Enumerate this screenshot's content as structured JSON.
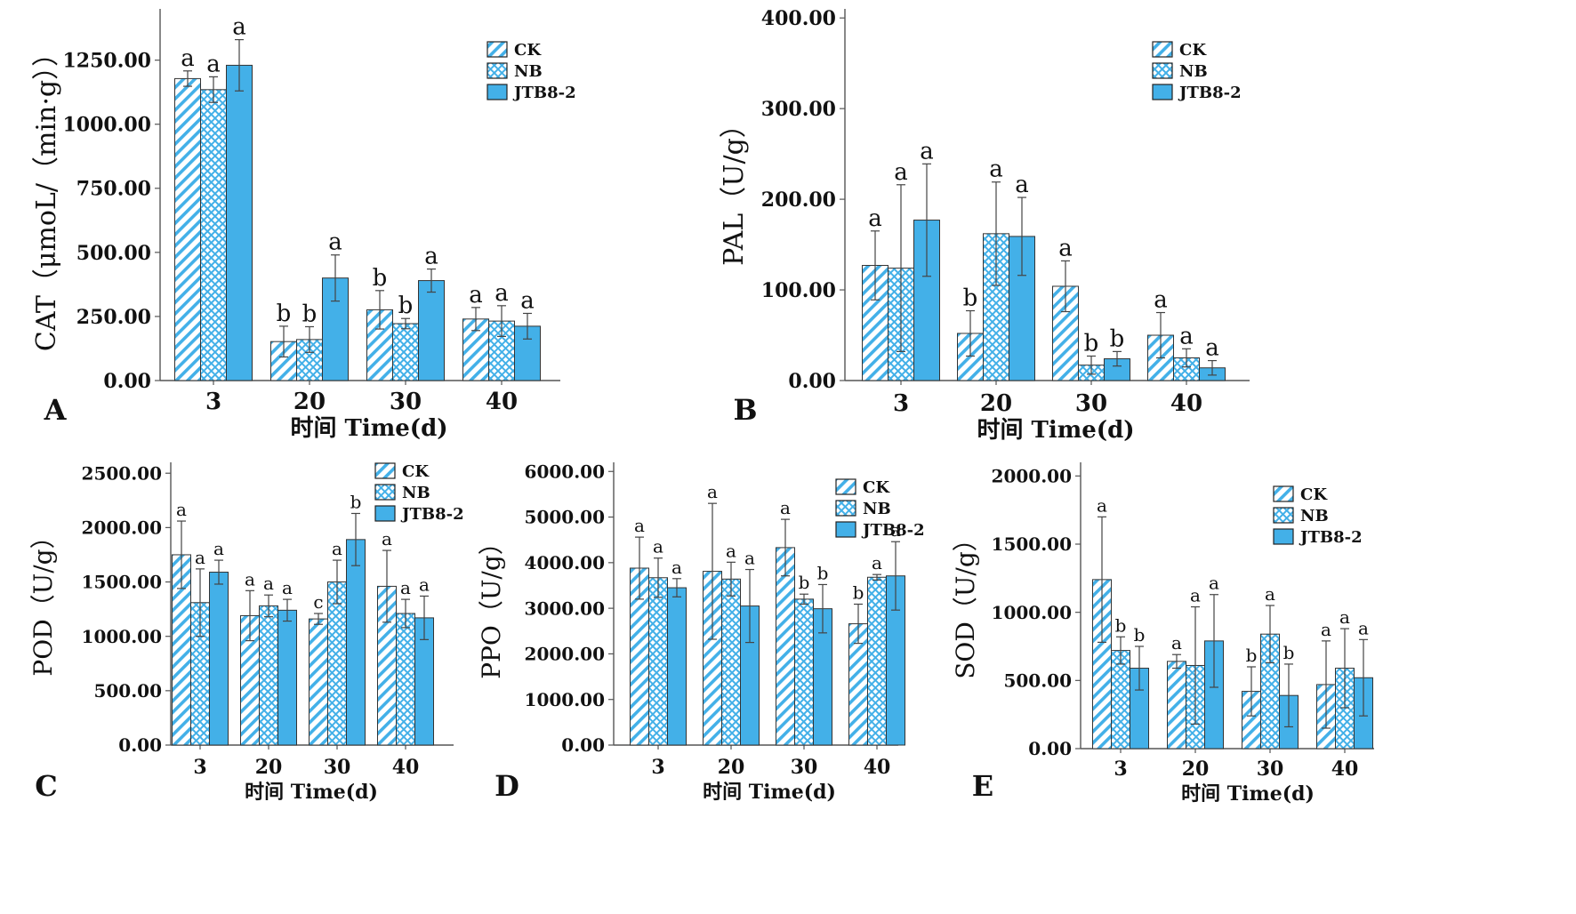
{
  "colors": {
    "CK": "#43b0e8",
    "NB": "#43b0e8",
    "JTB8-2": "#43b0e8",
    "axis": "#555555",
    "text": "#111111"
  },
  "legend_labels": [
    "CK",
    "NB",
    "JTB8-2"
  ],
  "chart_data": [
    {
      "panel": "A",
      "type": "bar",
      "title": "",
      "xlabel": "时间 Time(d)",
      "ylabel": "CAT（μmoL/（min·g））",
      "categories": [
        "3",
        "20",
        "30",
        "40"
      ],
      "ylim": [
        0,
        1450
      ],
      "yticks": [
        "0.00",
        "250.00",
        "500.00",
        "750.00",
        "1000.00",
        "1250.00"
      ],
      "tick_values": [
        0,
        250,
        500,
        750,
        1000,
        1250
      ],
      "legend": "top-right",
      "series": [
        {
          "name": "CK",
          "values": [
            1178,
            152,
            276,
            240
          ],
          "errors": [
            30,
            60,
            75,
            45
          ],
          "letters": [
            "a",
            "b",
            "b",
            "a"
          ]
        },
        {
          "name": "NB",
          "values": [
            1135,
            160,
            222,
            232
          ],
          "errors": [
            50,
            50,
            20,
            60
          ],
          "letters": [
            "a",
            "b",
            "b",
            "a"
          ]
        },
        {
          "name": "JTB8-2",
          "values": [
            1230,
            400,
            390,
            212
          ],
          "errors": [
            100,
            90,
            45,
            50
          ],
          "letters": [
            "a",
            "a",
            "a",
            "a"
          ]
        }
      ]
    },
    {
      "panel": "B",
      "type": "bar",
      "title": "",
      "xlabel": "时间 Time(d)",
      "ylabel": "PAL（U/g）",
      "categories": [
        "3",
        "20",
        "30",
        "40"
      ],
      "ylim": [
        0,
        410
      ],
      "yticks": [
        "0.00",
        "100.00",
        "200.00",
        "300.00",
        "400.00"
      ],
      "tick_values": [
        0,
        100,
        200,
        300,
        400
      ],
      "legend": "top-right",
      "series": [
        {
          "name": "CK",
          "values": [
            127,
            52,
            104,
            50
          ],
          "errors": [
            38,
            25,
            28,
            25
          ],
          "letters": [
            "a",
            "b",
            "a",
            "a"
          ]
        },
        {
          "name": "NB",
          "values": [
            124,
            162,
            17,
            25
          ],
          "errors": [
            92,
            57,
            10,
            10
          ],
          "letters": [
            "a",
            "a",
            "b",
            "a"
          ]
        },
        {
          "name": "JTB8-2",
          "values": [
            177,
            159,
            24,
            14
          ],
          "errors": [
            62,
            43,
            8,
            8
          ],
          "letters": [
            "a",
            "a",
            "b",
            "a"
          ]
        }
      ]
    },
    {
      "panel": "C",
      "type": "bar",
      "title": "",
      "xlabel": "时间 Time(d)",
      "ylabel": "POD（U/g）",
      "categories": [
        "3",
        "20",
        "30",
        "40"
      ],
      "ylim": [
        0,
        2600
      ],
      "yticks": [
        "0.00",
        "500.00",
        "1000.00",
        "1500.00",
        "2000.00",
        "2500.00"
      ],
      "tick_values": [
        0,
        500,
        1000,
        1500,
        2000,
        2500
      ],
      "legend": "top-right",
      "series": [
        {
          "name": "CK",
          "values": [
            1750,
            1190,
            1160,
            1460
          ],
          "errors": [
            310,
            230,
            50,
            330
          ],
          "letters": [
            "a",
            "a",
            "c",
            "a"
          ]
        },
        {
          "name": "NB",
          "values": [
            1310,
            1280,
            1500,
            1210
          ],
          "errors": [
            310,
            100,
            200,
            130
          ],
          "letters": [
            "a",
            "a",
            "a",
            "a"
          ]
        },
        {
          "name": "JTB8-2",
          "values": [
            1590,
            1240,
            1890,
            1170
          ],
          "errors": [
            110,
            100,
            240,
            200
          ],
          "letters": [
            "a",
            "a",
            "b",
            "a"
          ]
        }
      ]
    },
    {
      "panel": "D",
      "type": "bar",
      "title": "",
      "xlabel": "时间 Time(d)",
      "ylabel": "PPO（U/g）",
      "categories": [
        "3",
        "20",
        "30",
        "40"
      ],
      "ylim": [
        0,
        6200
      ],
      "yticks": [
        "0.00",
        "1000.00",
        "2000.00",
        "3000.00",
        "4000.00",
        "5000.00",
        "6000.00"
      ],
      "tick_values": [
        0,
        1000,
        2000,
        3000,
        4000,
        5000,
        6000
      ],
      "legend": "top-right",
      "series": [
        {
          "name": "CK",
          "values": [
            3880,
            3810,
            4330,
            2660
          ],
          "errors": [
            680,
            1490,
            620,
            430
          ],
          "letters": [
            "a",
            "a",
            "a",
            "b"
          ]
        },
        {
          "name": "NB",
          "values": [
            3670,
            3640,
            3200,
            3680
          ],
          "errors": [
            430,
            370,
            110,
            60
          ],
          "letters": [
            "a",
            "a",
            "b",
            "a"
          ]
        },
        {
          "name": "JTB8-2",
          "values": [
            3450,
            3050,
            2990,
            3710
          ],
          "errors": [
            200,
            800,
            530,
            750
          ],
          "letters": [
            "a",
            "a",
            "b",
            "a"
          ]
        }
      ]
    },
    {
      "panel": "E",
      "type": "bar",
      "title": "",
      "xlabel": "时间 Time(d)",
      "ylabel": "SOD（U/g）",
      "categories": [
        "3",
        "20",
        "30",
        "40"
      ],
      "ylim": [
        0,
        2100
      ],
      "yticks": [
        "0.00",
        "500.00",
        "1000.00",
        "1500.00",
        "2000.00"
      ],
      "tick_values": [
        0,
        500,
        1000,
        1500,
        2000
      ],
      "legend": "top-right",
      "series": [
        {
          "name": "CK",
          "values": [
            1240,
            640,
            420,
            470
          ],
          "errors": [
            460,
            50,
            180,
            320
          ],
          "letters": [
            "a",
            "a",
            "b",
            "a"
          ]
        },
        {
          "name": "NB",
          "values": [
            720,
            610,
            840,
            590
          ],
          "errors": [
            100,
            430,
            210,
            290
          ],
          "letters": [
            "b",
            "a",
            "a",
            "a"
          ]
        },
        {
          "name": "JTB8-2",
          "values": [
            590,
            790,
            390,
            520
          ],
          "errors": [
            160,
            340,
            230,
            280
          ],
          "letters": [
            "b",
            "a",
            "b",
            "a"
          ]
        }
      ]
    }
  ]
}
